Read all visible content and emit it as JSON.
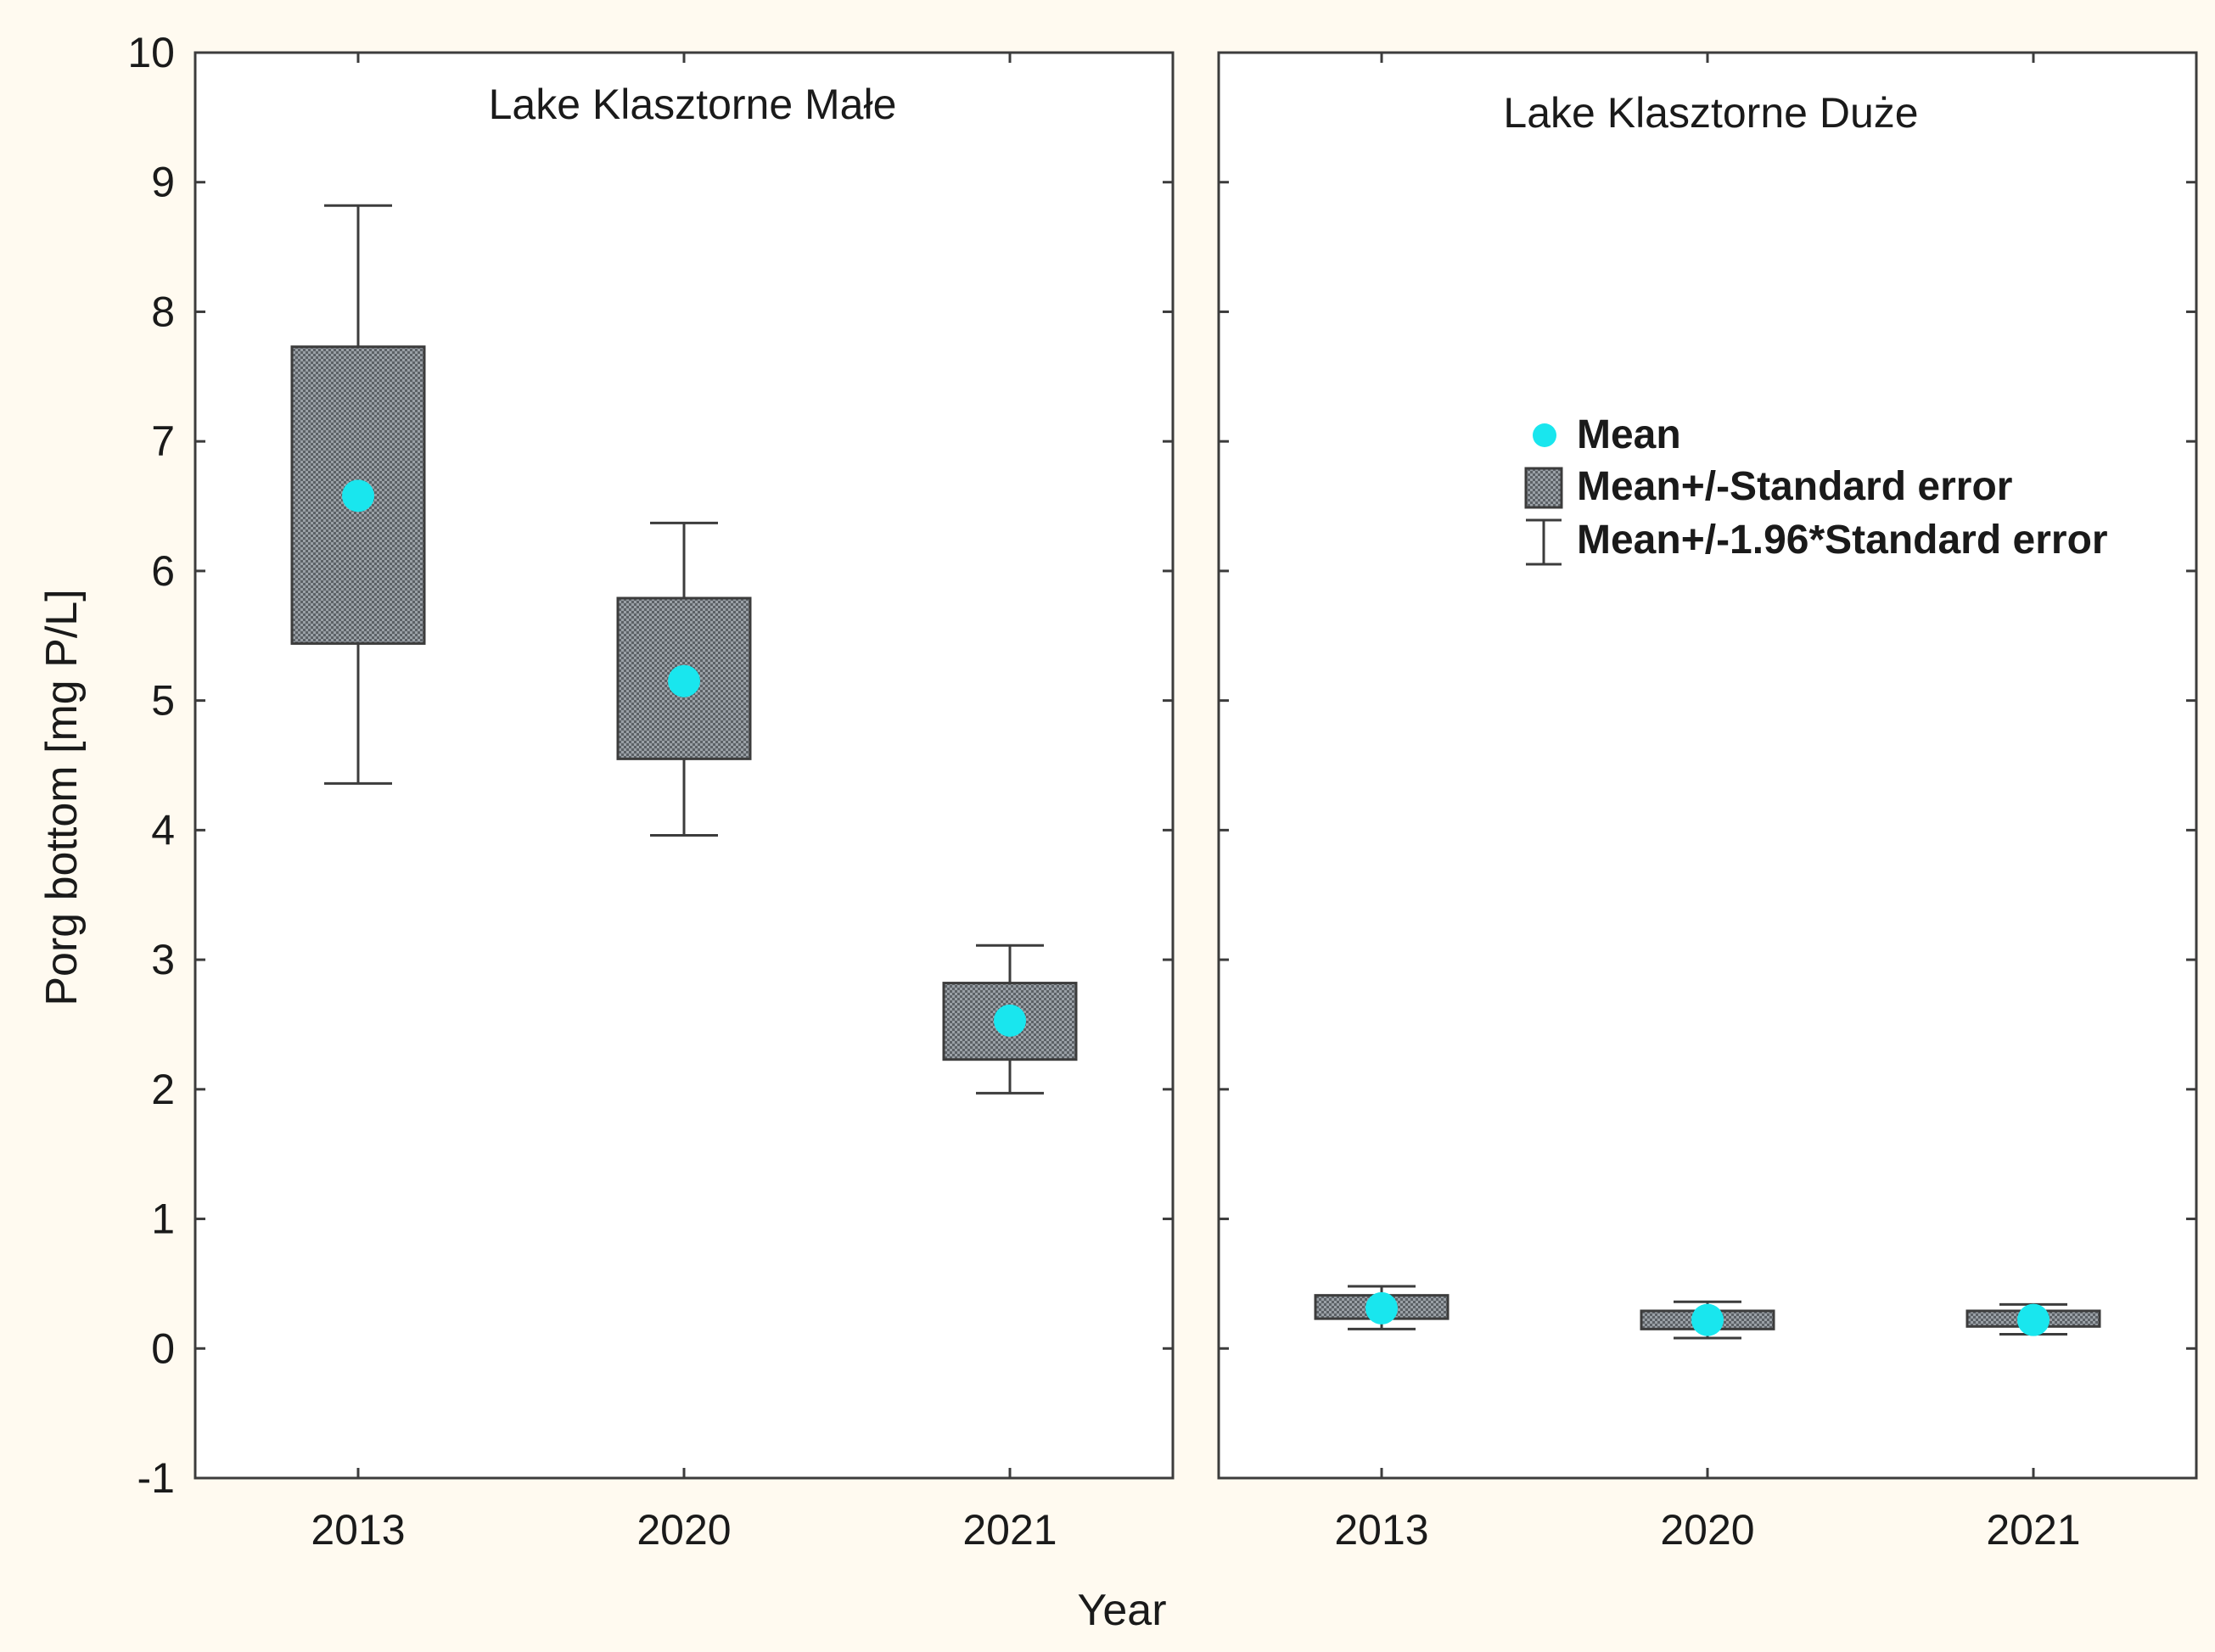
{
  "chart_data": {
    "type": "box",
    "ylabel": "Porg bottom [mg P/L]",
    "xlabel": "Year",
    "ylim": [
      -1,
      10
    ],
    "yticks": [
      "-1",
      "0",
      "1",
      "2",
      "3",
      "4",
      "5",
      "6",
      "7",
      "8",
      "9",
      "10"
    ],
    "categories": [
      "2013",
      "2020",
      "2021"
    ],
    "legend": {
      "position": "top-right",
      "items": [
        "Mean",
        "Mean+/-Standard error",
        "Mean+/-1.96*Standard error"
      ]
    },
    "colors": {
      "mean": "#19e6ee",
      "box": "#8a8f94",
      "line": "#3c3c3c"
    },
    "panels": [
      {
        "title": "Lake Klasztorne Małe",
        "series": [
          {
            "category": "2013",
            "mean": 6.58,
            "se_low": 5.44,
            "se_high": 7.73,
            "ci_low": 4.36,
            "ci_high": 8.82
          },
          {
            "category": "2020",
            "mean": 5.15,
            "se_low": 4.55,
            "se_high": 5.79,
            "ci_low": 3.96,
            "ci_high": 6.37
          },
          {
            "category": "2021",
            "mean": 2.53,
            "se_low": 2.23,
            "se_high": 2.82,
            "ci_low": 1.97,
            "ci_high": 3.11
          }
        ]
      },
      {
        "title": "Lake Klasztorne Duże",
        "series": [
          {
            "category": "2013",
            "mean": 0.31,
            "se_low": 0.23,
            "se_high": 0.41,
            "ci_low": 0.15,
            "ci_high": 0.48
          },
          {
            "category": "2020",
            "mean": 0.22,
            "se_low": 0.15,
            "se_high": 0.29,
            "ci_low": 0.08,
            "ci_high": 0.36
          },
          {
            "category": "2021",
            "mean": 0.22,
            "se_low": 0.17,
            "se_high": 0.29,
            "ci_low": 0.11,
            "ci_high": 0.34
          }
        ]
      }
    ]
  }
}
